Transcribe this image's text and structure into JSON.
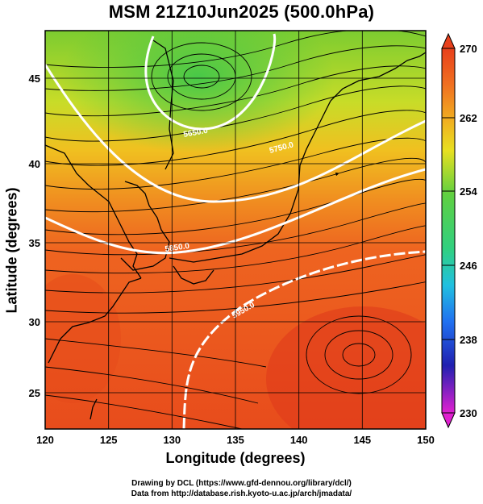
{
  "title": "MSM 21Z10Jun2025 (500.0hPa)",
  "xaxis": {
    "label": "Longitude (degrees)",
    "ticks": [
      "120",
      "125",
      "130",
      "135",
      "140",
      "145",
      "150"
    ],
    "range": [
      120,
      150
    ]
  },
  "yaxis": {
    "label": "Latitude  (degrees)",
    "ticks": [
      "25",
      "30",
      "35",
      "40",
      "45"
    ],
    "range": [
      22.4,
      47.6
    ]
  },
  "colorbar": {
    "ticks": [
      "270",
      "262",
      "254",
      "246",
      "238",
      "230"
    ],
    "range": [
      230,
      270
    ]
  },
  "contour_labels": [
    "5650.0",
    "5750.0",
    "5850.0",
    "5950.0"
  ],
  "credits": {
    "line1": "Drawing by DCL (https://www.gfd-dennou.org/library/dcl/)",
    "line2": "Data from http://database.rish.kyoto-u.ac.jp/arch/jmadata/"
  },
  "colors": {
    "orange_red": "#f06020",
    "yellow": "#f0d020",
    "green": "#60d040",
    "contour": "#ffffff"
  }
}
